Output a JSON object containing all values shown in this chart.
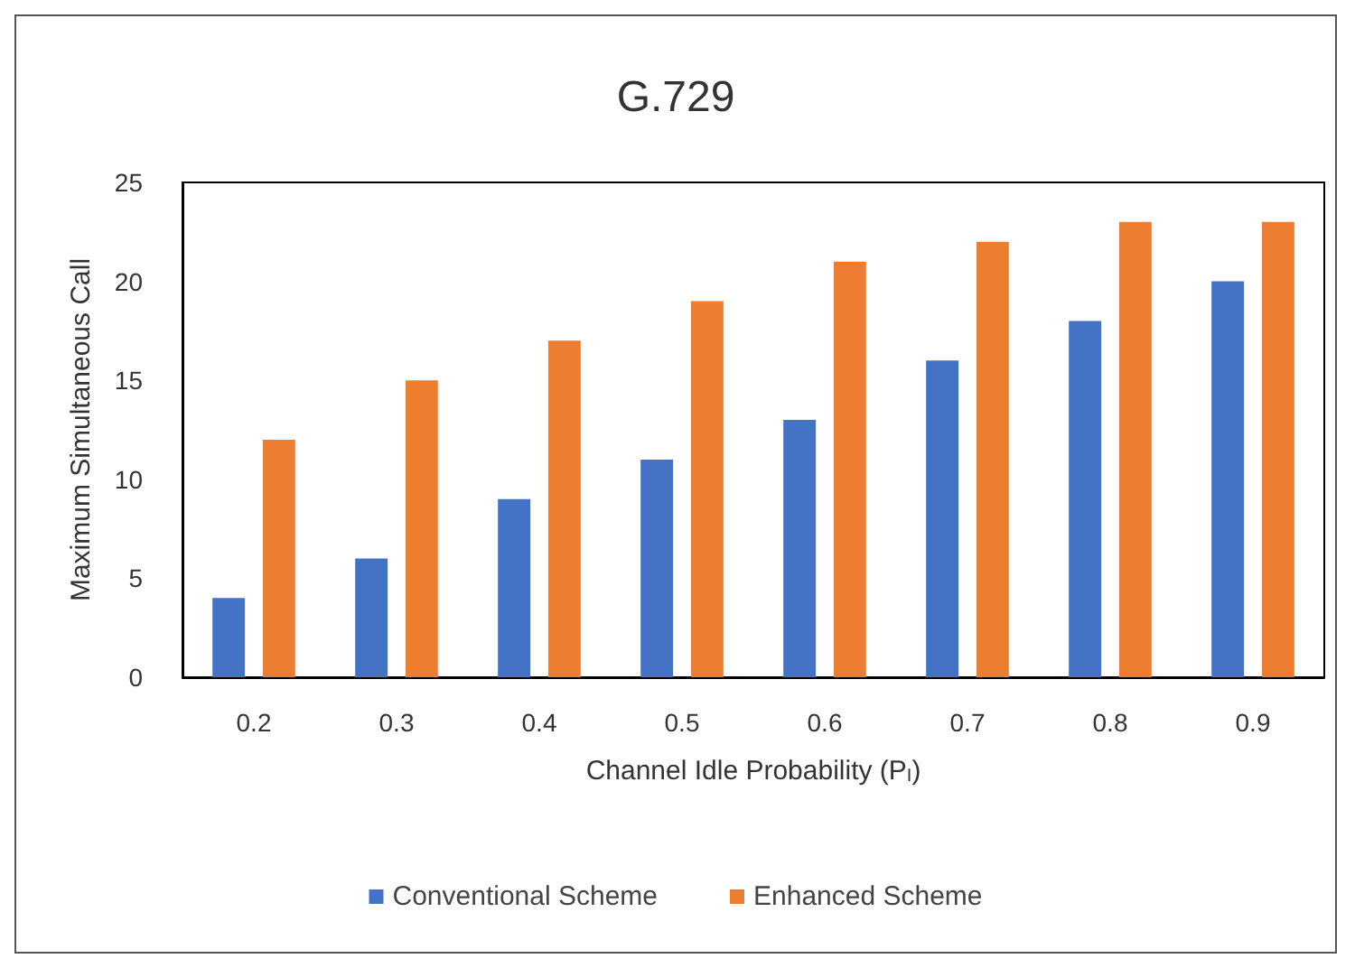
{
  "chart_data": {
    "type": "bar",
    "title": "G.729",
    "xlabel": "Channel Idle Probability (P$_{I}$)",
    "ylabel": "Maximum Simultaneous Call",
    "categories": [
      "0.2",
      "0.3",
      "0.4",
      "0.5",
      "0.6",
      "0.7",
      "0.8",
      "0.9"
    ],
    "series": [
      {
        "name": "Conventional Scheme",
        "color": "#4472c4",
        "values": [
          4,
          6,
          9,
          11,
          13,
          16,
          18,
          20
        ]
      },
      {
        "name": "Enhanced Scheme",
        "color": "#ed7d31",
        "values": [
          12,
          15,
          17,
          19,
          21,
          22,
          23,
          23
        ]
      }
    ],
    "ylim": [
      0,
      25
    ],
    "yticks": [
      0,
      5,
      10,
      15,
      20,
      25
    ],
    "grid": false,
    "legend": "bottom"
  }
}
